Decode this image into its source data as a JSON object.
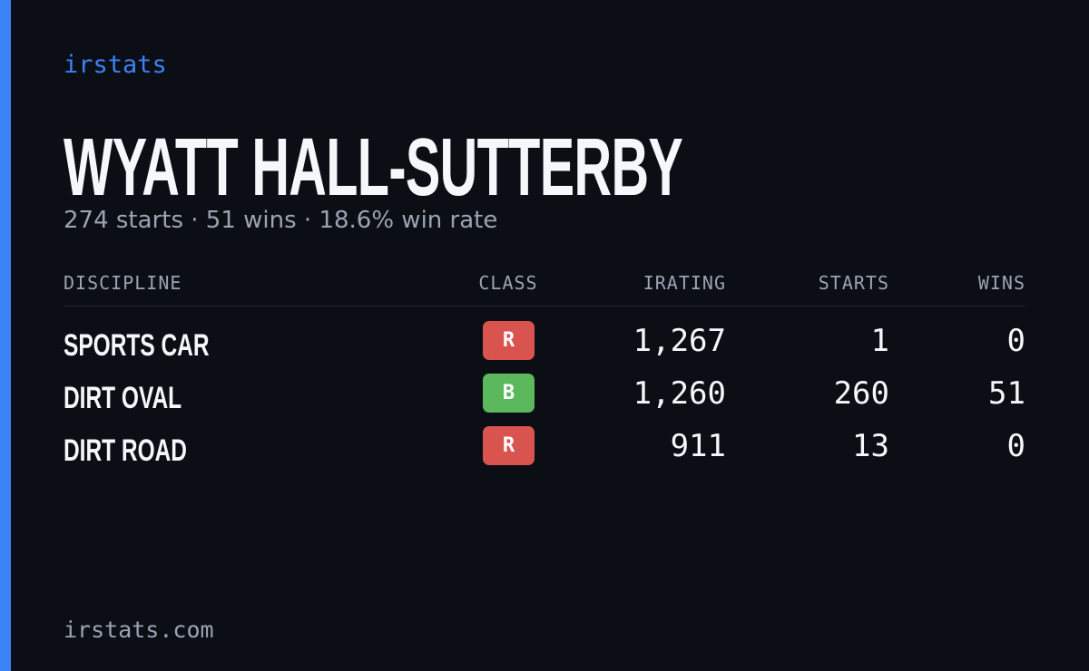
{
  "brand": "irstats",
  "header": {
    "title": "WYATT HALL-SUTTERBY",
    "summary": "274 starts · 51 wins · 18.6% win rate"
  },
  "table": {
    "columns": [
      "DISCIPLINE",
      "CLASS",
      "IRATING",
      "STARTS",
      "WINS"
    ],
    "rows": [
      [
        "SPORTS CAR",
        "R",
        "1,267",
        "1",
        "0"
      ],
      [
        "DIRT OVAL",
        "B",
        "1,260",
        "260",
        "51"
      ],
      [
        "DIRT ROAD",
        "R",
        "911",
        "13",
        "0"
      ]
    ]
  },
  "footer": "irstats.com"
}
